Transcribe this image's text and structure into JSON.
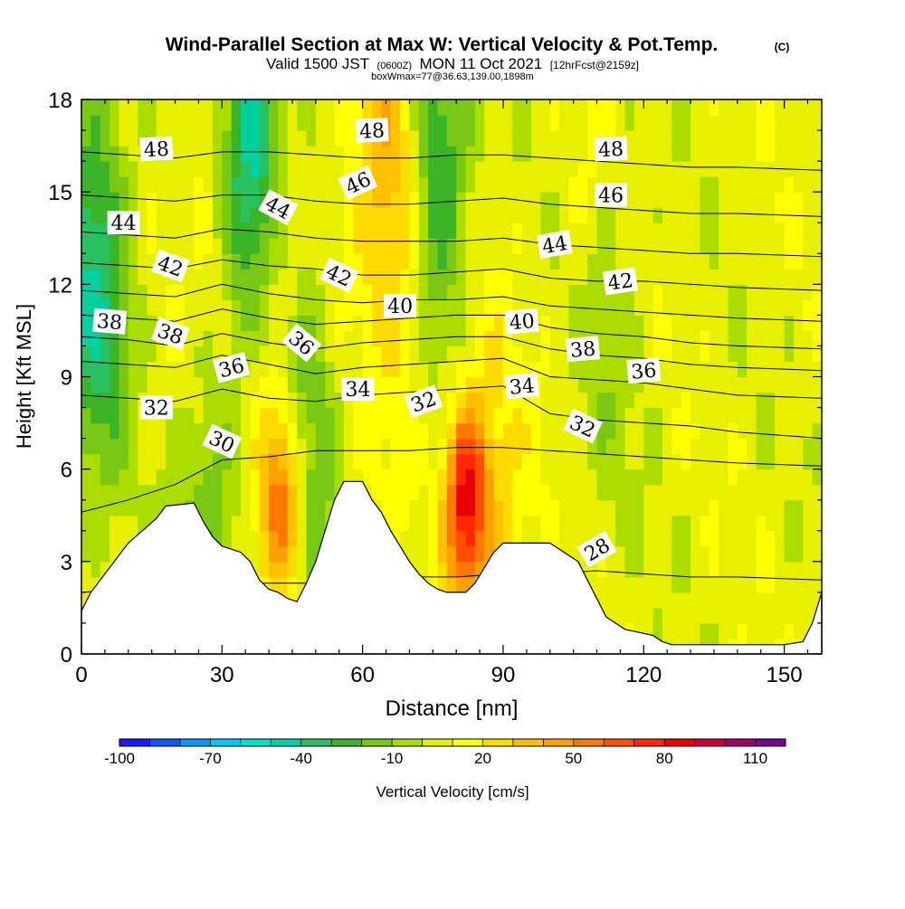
{
  "chart_data": {
    "type": "heatmap",
    "title": "Wind-Parallel Section at Max W: Vertical Velocity & Pot.Temp.",
    "title_mark": "(C)",
    "subtitle": {
      "valid": "Valid 1500 JST",
      "utc": "(0600Z)",
      "date": "MON 11 Oct 2021",
      "fcst": "[12hrFcst@2159z]"
    },
    "box_info": "boxWmax=77@36.63,139.00,1898m",
    "xlabel": "Distance [nm]",
    "ylabel": "Height [Kft MSL]",
    "xlim": [
      0,
      158
    ],
    "ylim": [
      0,
      18
    ],
    "xticks": [
      0,
      30,
      60,
      90,
      120,
      150
    ],
    "yticks": [
      0,
      3,
      6,
      9,
      12,
      15,
      18
    ],
    "colorbar": {
      "label": "Vertical Velocity [cm/s]",
      "tick_labels": [
        "-100",
        "-70",
        "-40",
        "-10",
        "20",
        "50",
        "80",
        "110"
      ],
      "levels": [
        -100,
        -90,
        -80,
        -70,
        -60,
        -50,
        -40,
        -30,
        -20,
        -10,
        0,
        10,
        20,
        30,
        40,
        50,
        60,
        70,
        80,
        90,
        100,
        110
      ],
      "colors": [
        "#1a1aff",
        "#0a5cff",
        "#0a96ff",
        "#00c8ff",
        "#00e0d2",
        "#00d0a0",
        "#28c060",
        "#3cb428",
        "#78c814",
        "#aadc00",
        "#e6f000",
        "#ffff00",
        "#ffdc00",
        "#ffc000",
        "#ffa000",
        "#ff7800",
        "#ff5000",
        "#ff2800",
        "#e60000",
        "#c8003c",
        "#a00064",
        "#780096"
      ]
    },
    "updrafts": [
      {
        "x": 43,
        "z": 5,
        "w": 60
      },
      {
        "x": 82,
        "z": 5,
        "w": 77
      },
      {
        "x": 40,
        "z": 11,
        "w": 30
      },
      {
        "x": 30,
        "z": 14,
        "w": 25
      },
      {
        "x": 70,
        "z": 14,
        "w": 30
      },
      {
        "x": 64,
        "z": 17,
        "w": 25
      },
      {
        "x": 88,
        "z": 4.5,
        "w": 20
      },
      {
        "x": 110,
        "z": 15,
        "w": 15
      }
    ],
    "downdrafts": [
      {
        "x": 3,
        "z": 12,
        "w": -45
      },
      {
        "x": 36,
        "z": 16,
        "w": -70
      },
      {
        "x": 47,
        "z": 7,
        "w": -30
      },
      {
        "x": 75,
        "z": 16,
        "w": -50
      },
      {
        "x": 28,
        "z": 5,
        "w": -25
      },
      {
        "x": 112,
        "z": 12,
        "w": -20
      }
    ],
    "terrain": [
      [
        0,
        1.4
      ],
      [
        2,
        2
      ],
      [
        5,
        2.6
      ],
      [
        8,
        3.2
      ],
      [
        10,
        3.6
      ],
      [
        13,
        4
      ],
      [
        16,
        4.4
      ],
      [
        18,
        4.8
      ],
      [
        24,
        4.9
      ],
      [
        26,
        4.3
      ],
      [
        28,
        3.8
      ],
      [
        30,
        3.5
      ],
      [
        34,
        3.3
      ],
      [
        36,
        3
      ],
      [
        38,
        2.4
      ],
      [
        40,
        2.1
      ],
      [
        42,
        2
      ],
      [
        44,
        1.8
      ],
      [
        46,
        1.7
      ],
      [
        48,
        2.3
      ],
      [
        50,
        3
      ],
      [
        52,
        4
      ],
      [
        54,
        5
      ],
      [
        56,
        5.6
      ],
      [
        60,
        5.6
      ],
      [
        62,
        5
      ],
      [
        64,
        4.6
      ],
      [
        66,
        4
      ],
      [
        68,
        3.5
      ],
      [
        70,
        3
      ],
      [
        72,
        2.6
      ],
      [
        74,
        2.3
      ],
      [
        76,
        2.1
      ],
      [
        78,
        2
      ],
      [
        82,
        2
      ],
      [
        84,
        2.3
      ],
      [
        86,
        2.8
      ],
      [
        88,
        3.3
      ],
      [
        90,
        3.6
      ],
      [
        100,
        3.6
      ],
      [
        102,
        3.4
      ],
      [
        104,
        3.2
      ],
      [
        106,
        3
      ],
      [
        108,
        2.4
      ],
      [
        110,
        1.8
      ],
      [
        112,
        1.2
      ],
      [
        116,
        0.8
      ],
      [
        122,
        0.6
      ],
      [
        124,
        0.4
      ],
      [
        126,
        0.3
      ],
      [
        130,
        0.3
      ],
      [
        140,
        0.3
      ],
      [
        150,
        0.3
      ],
      [
        154,
        0.4
      ],
      [
        156,
        1
      ],
      [
        158,
        2
      ]
    ],
    "theta_lines": [
      {
        "value": 28,
        "z": [
          2.0,
          2.1,
          2.2,
          2.3,
          2.3,
          2.3,
          2.4,
          2.5,
          2.5,
          2.6,
          2.6,
          2.7,
          2.6,
          2.5,
          2.5,
          2.4
        ]
      },
      {
        "value": 30,
        "z": [
          4.6,
          5.0,
          5.5,
          6.3,
          6.4,
          6.6,
          6.6,
          6.6,
          6.7,
          6.7,
          6.6,
          6.5,
          6.4,
          6.3,
          6.2,
          6.1
        ]
      },
      {
        "value": 32,
        "z": [
          8.4,
          8.3,
          8.2,
          8.6,
          8.3,
          8.2,
          8.4,
          8.5,
          8.6,
          8.7,
          7.8,
          7.6,
          7.5,
          7.4,
          7.2,
          7.0
        ]
      },
      {
        "value": 34,
        "z": [
          9.5,
          9.4,
          9.3,
          9.7,
          9.4,
          9.1,
          9.3,
          9.4,
          9.5,
          9.6,
          9.0,
          8.9,
          8.8,
          8.6,
          8.4,
          8.3
        ]
      },
      {
        "value": 36,
        "z": [
          10.3,
          10.2,
          10.0,
          10.4,
          10.1,
          9.9,
          10.1,
          10.2,
          10.3,
          10.3,
          9.9,
          9.7,
          9.6,
          9.4,
          9.3,
          9.2
        ]
      },
      {
        "value": 38,
        "z": [
          11.0,
          10.9,
          10.8,
          11.2,
          10.9,
          10.7,
          10.8,
          10.9,
          11.0,
          11.0,
          10.6,
          10.4,
          10.3,
          10.1,
          10.0,
          9.9
        ]
      },
      {
        "value": 40,
        "z": [
          11.8,
          11.7,
          11.6,
          12.0,
          11.7,
          11.5,
          11.4,
          11.5,
          11.5,
          11.6,
          11.3,
          11.2,
          11.1,
          11.0,
          10.9,
          10.8
        ]
      },
      {
        "value": 42,
        "z": [
          12.7,
          12.6,
          12.5,
          12.8,
          12.6,
          12.5,
          12.3,
          12.3,
          12.4,
          12.5,
          12.2,
          12.1,
          12.1,
          12.0,
          11.9,
          11.8
        ]
      },
      {
        "value": 44,
        "z": [
          13.7,
          13.6,
          13.5,
          13.8,
          13.7,
          13.5,
          13.4,
          13.4,
          13.4,
          13.5,
          13.3,
          13.2,
          13.1,
          13.0,
          13.0,
          12.9
        ]
      },
      {
        "value": 46,
        "z": [
          14.9,
          14.8,
          14.7,
          14.9,
          14.9,
          14.7,
          14.6,
          14.6,
          14.7,
          14.8,
          14.6,
          14.5,
          14.4,
          14.3,
          14.3,
          14.2
        ]
      },
      {
        "value": 48,
        "z": [
          16.3,
          16.2,
          16.1,
          16.3,
          16.3,
          16.2,
          16.1,
          16.1,
          16.2,
          16.2,
          16.1,
          16.0,
          15.9,
          15.8,
          15.8,
          15.7
        ]
      }
    ],
    "theta_x": [
      0,
      10,
      20,
      30,
      40,
      50,
      60,
      70,
      80,
      90,
      100,
      110,
      120,
      130,
      140,
      158
    ],
    "theta_labels": [
      {
        "text": "48",
        "x": 16,
        "z": 16.4,
        "rot": -3
      },
      {
        "text": "48",
        "x": 62,
        "z": 17.0,
        "rot": -3
      },
      {
        "text": "48",
        "x": 113,
        "z": 16.4,
        "rot": -3
      },
      {
        "text": "46",
        "x": 59,
        "z": 15.3,
        "rot": -25
      },
      {
        "text": "46",
        "x": 113,
        "z": 14.9,
        "rot": 0
      },
      {
        "text": "44",
        "x": 9,
        "z": 14.0,
        "rot": 0
      },
      {
        "text": "44",
        "x": 42,
        "z": 14.5,
        "rot": 28
      },
      {
        "text": "44",
        "x": 101,
        "z": 13.3,
        "rot": -10
      },
      {
        "text": "42",
        "x": 19,
        "z": 12.6,
        "rot": 20
      },
      {
        "text": "42",
        "x": 55,
        "z": 12.3,
        "rot": 25
      },
      {
        "text": "42",
        "x": 115,
        "z": 12.1,
        "rot": -8
      },
      {
        "text": "40",
        "x": 68,
        "z": 11.3,
        "rot": 0
      },
      {
        "text": "40",
        "x": 94,
        "z": 10.8,
        "rot": -5
      },
      {
        "text": "38",
        "x": 6,
        "z": 10.8,
        "rot": 5
      },
      {
        "text": "38",
        "x": 19,
        "z": 10.4,
        "rot": 20
      },
      {
        "text": "38",
        "x": 107,
        "z": 9.9,
        "rot": -5
      },
      {
        "text": "36",
        "x": 32,
        "z": 9.3,
        "rot": -15
      },
      {
        "text": "36",
        "x": 47,
        "z": 10.1,
        "rot": 40
      },
      {
        "text": "36",
        "x": 120,
        "z": 9.2,
        "rot": -5
      },
      {
        "text": "34",
        "x": 59,
        "z": 8.6,
        "rot": 0
      },
      {
        "text": "34",
        "x": 94,
        "z": 8.7,
        "rot": -5
      },
      {
        "text": "32",
        "x": 16,
        "z": 8.0,
        "rot": 0
      },
      {
        "text": "32",
        "x": 73,
        "z": 8.2,
        "rot": -20
      },
      {
        "text": "32",
        "x": 107,
        "z": 7.4,
        "rot": 25
      },
      {
        "text": "30",
        "x": 30,
        "z": 6.9,
        "rot": 25
      },
      {
        "text": "28",
        "x": 110,
        "z": 3.4,
        "rot": -30
      }
    ]
  }
}
